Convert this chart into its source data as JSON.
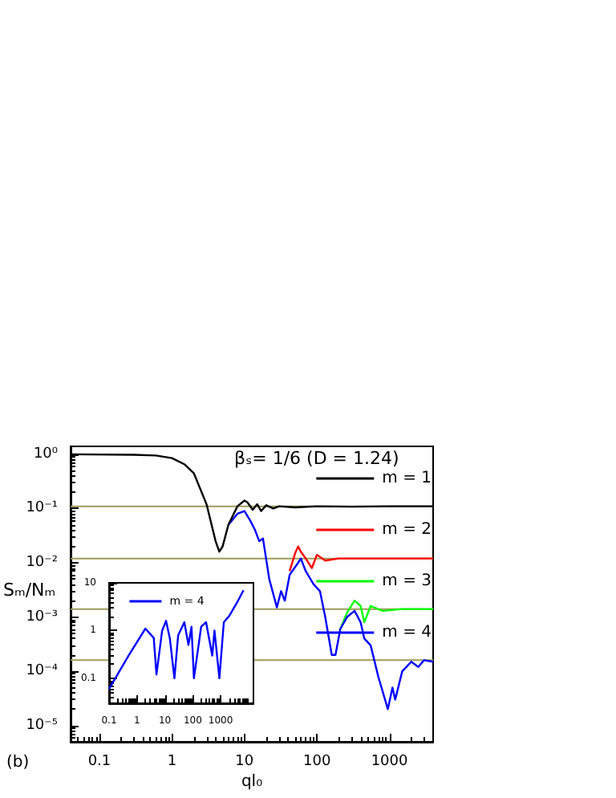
{
  "chart_data": [
    {
      "type": "line",
      "xlabel": "ql₀",
      "ylabel": "Sₘ/Nₘ",
      "annotations": [
        "βₛ= 1/6 (D = 1.24)",
        "(b)"
      ],
      "log": "xy",
      "grid": false,
      "legend": "right",
      "marker": "none",
      "line_style": "solid",
      "xlim": [
        0.04,
        4000
      ],
      "ylim": [
        5e-06,
        1.4
      ],
      "xticks": [
        0.1,
        1,
        10,
        100,
        1000
      ],
      "yticks": [
        {
          "value": 1e-05,
          "label": "10⁻⁵"
        },
        {
          "value": 0.0001,
          "label": "10⁻⁴"
        },
        {
          "value": 0.001,
          "label": "10⁻³"
        },
        {
          "value": 0.01,
          "label": "10⁻²"
        },
        {
          "value": 0.1,
          "label": "10⁻¹"
        },
        {
          "value": 1,
          "label": "10⁰"
        }
      ],
      "ref_lines": [
        {
          "axis": "y",
          "value": 0.11,
          "color": "#a09a5a"
        },
        {
          "axis": "y",
          "value": 0.012,
          "color": "#a09a5a"
        },
        {
          "axis": "y",
          "value": 0.0014,
          "color": "#a09a5a"
        },
        {
          "axis": "y",
          "value": 0.00016,
          "color": "#a09a5a"
        }
      ],
      "series": [
        {
          "name": "m = 1",
          "color": "#000000",
          "x": [
            0.04,
            0.3,
            0.6,
            1,
            1.5,
            2,
            3,
            4,
            4.5,
            5,
            6,
            8,
            10,
            11,
            13,
            15,
            17,
            20,
            25,
            30,
            50,
            100,
            300,
            1000,
            4000
          ],
          "values": [
            1,
            0.98,
            0.95,
            0.85,
            0.65,
            0.45,
            0.12,
            0.025,
            0.016,
            0.02,
            0.05,
            0.11,
            0.14,
            0.13,
            0.095,
            0.12,
            0.09,
            0.115,
            0.1,
            0.11,
            0.105,
            0.11,
            0.108,
            0.11,
            0.11
          ]
        },
        {
          "name": "m = 2",
          "color": "#ff0000",
          "x": [
            42,
            50,
            55,
            60,
            70,
            85,
            100,
            130,
            200,
            500,
            1000,
            4000
          ],
          "values": [
            0.007,
            0.015,
            0.02,
            0.016,
            0.012,
            0.008,
            0.014,
            0.011,
            0.012,
            0.012,
            0.012,
            0.012
          ]
        },
        {
          "name": "m = 3",
          "color": "#00ff00",
          "x": [
            210,
            260,
            330,
            400,
            450,
            550,
            800,
            1500,
            4000
          ],
          "values": [
            0.0006,
            0.0012,
            0.002,
            0.0016,
            0.0008,
            0.0016,
            0.0013,
            0.0014,
            0.0014
          ]
        },
        {
          "name": "m = 4",
          "color": "#0000ff",
          "x": [
            6,
            8,
            10,
            12,
            14,
            16,
            18,
            22,
            28,
            32,
            36,
            42,
            55,
            60,
            70,
            90,
            110,
            130,
            160,
            180,
            210,
            260,
            330,
            400,
            450,
            550,
            700,
            950,
            1100,
            1200,
            1500,
            2000,
            2500,
            3000,
            4000
          ],
          "values": [
            0.05,
            0.08,
            0.09,
            0.06,
            0.04,
            0.025,
            0.028,
            0.005,
            0.0015,
            0.003,
            0.002,
            0.006,
            0.01,
            0.012,
            0.007,
            0.004,
            0.003,
            0.001,
            0.0002,
            0.0002,
            0.0006,
            0.001,
            0.0013,
            0.0008,
            0.0004,
            0.0003,
            8e-05,
            2e-05,
            5e-05,
            3e-05,
            0.0001,
            0.00015,
            0.00012,
            0.00016,
            0.00015
          ]
        }
      ]
    },
    {
      "type": "line",
      "log": "xy",
      "grid": false,
      "legend": "top",
      "marker": "none",
      "line_style": "solid",
      "xlim": [
        0.1,
        15000
      ],
      "ylim": [
        0.03,
        10
      ],
      "xticks": [
        0.1,
        1,
        10,
        100,
        1000
      ],
      "yticks": [
        0.1,
        1,
        10
      ],
      "series": [
        {
          "name": "m = 4",
          "color": "#0000ff",
          "x": [
            0.1,
            0.5,
            2,
            4,
            5,
            8,
            11,
            15,
            22,
            30,
            50,
            70,
            90,
            110,
            200,
            300,
            500,
            600,
            900,
            1300,
            2000,
            4000,
            6600
          ],
          "values": [
            0.06,
            0.3,
            1.1,
            0.7,
            0.12,
            1,
            1.6,
            0.7,
            0.1,
            0.8,
            1.5,
            0.5,
            1.2,
            0.1,
            1.2,
            1.5,
            0.3,
            1,
            0.1,
            1.5,
            2,
            4,
            7
          ]
        }
      ]
    }
  ]
}
